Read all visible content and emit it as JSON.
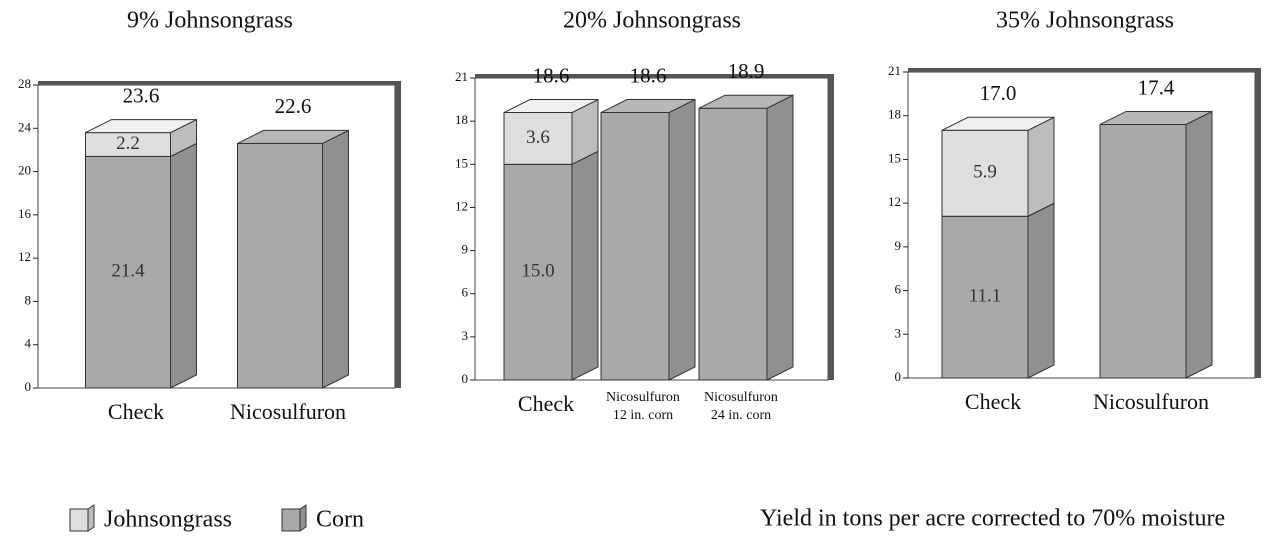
{
  "chart_data": [
    {
      "type": "bar",
      "stacked": true,
      "title": "9% Johnsongrass",
      "categories": [
        "Check",
        "Nicosulfuron"
      ],
      "series": [
        {
          "name": "Corn",
          "color": "#a9a9a9",
          "values": [
            21.4,
            22.6
          ],
          "value_labels": [
            "21.4",
            null
          ]
        },
        {
          "name": "Johnsongrass",
          "color": "#dedede",
          "values": [
            2.2,
            null
          ]
        }
      ],
      "totals": [
        23.6,
        22.6
      ],
      "ylim": [
        0,
        28
      ],
      "yticks": [
        0,
        4,
        8,
        12,
        16,
        20,
        24,
        28
      ]
    },
    {
      "type": "bar",
      "stacked": true,
      "title": "20% Johnsongrass",
      "categories": [
        "Check",
        "Nicosulfuron\n12 in. corn",
        "Nicosulfuron\n24 in. corn"
      ],
      "series": [
        {
          "name": "Corn",
          "color": "#a9a9a9",
          "values": [
            15.0,
            18.6,
            18.9
          ],
          "value_labels": [
            "15.0",
            null,
            null
          ]
        },
        {
          "name": "Johnsongrass",
          "color": "#dedede",
          "values": [
            3.6,
            null,
            null
          ]
        }
      ],
      "totals": [
        18.6,
        18.6,
        18.9
      ],
      "ylim": [
        0,
        21
      ],
      "yticks": [
        0,
        3,
        6,
        9,
        12,
        15,
        18,
        21
      ]
    },
    {
      "type": "bar",
      "stacked": true,
      "title": "35% Johnsongrass",
      "categories": [
        "Check",
        "Nicosulfuron"
      ],
      "series": [
        {
          "name": "Corn",
          "color": "#a9a9a9",
          "values": [
            11.1,
            17.4
          ],
          "value_labels": [
            "11.1",
            null
          ]
        },
        {
          "name": "Johnsongrass",
          "color": "#dedede",
          "values": [
            5.9,
            null
          ]
        }
      ],
      "totals": [
        17.0,
        17.4
      ],
      "total_labels": [
        "17.0",
        "17.4"
      ],
      "ylim": [
        0,
        21
      ],
      "yticks": [
        0,
        3,
        6,
        9,
        12,
        15,
        18,
        21
      ]
    }
  ],
  "caption": "Yield in tons per acre corrected to 70% moisture"
}
